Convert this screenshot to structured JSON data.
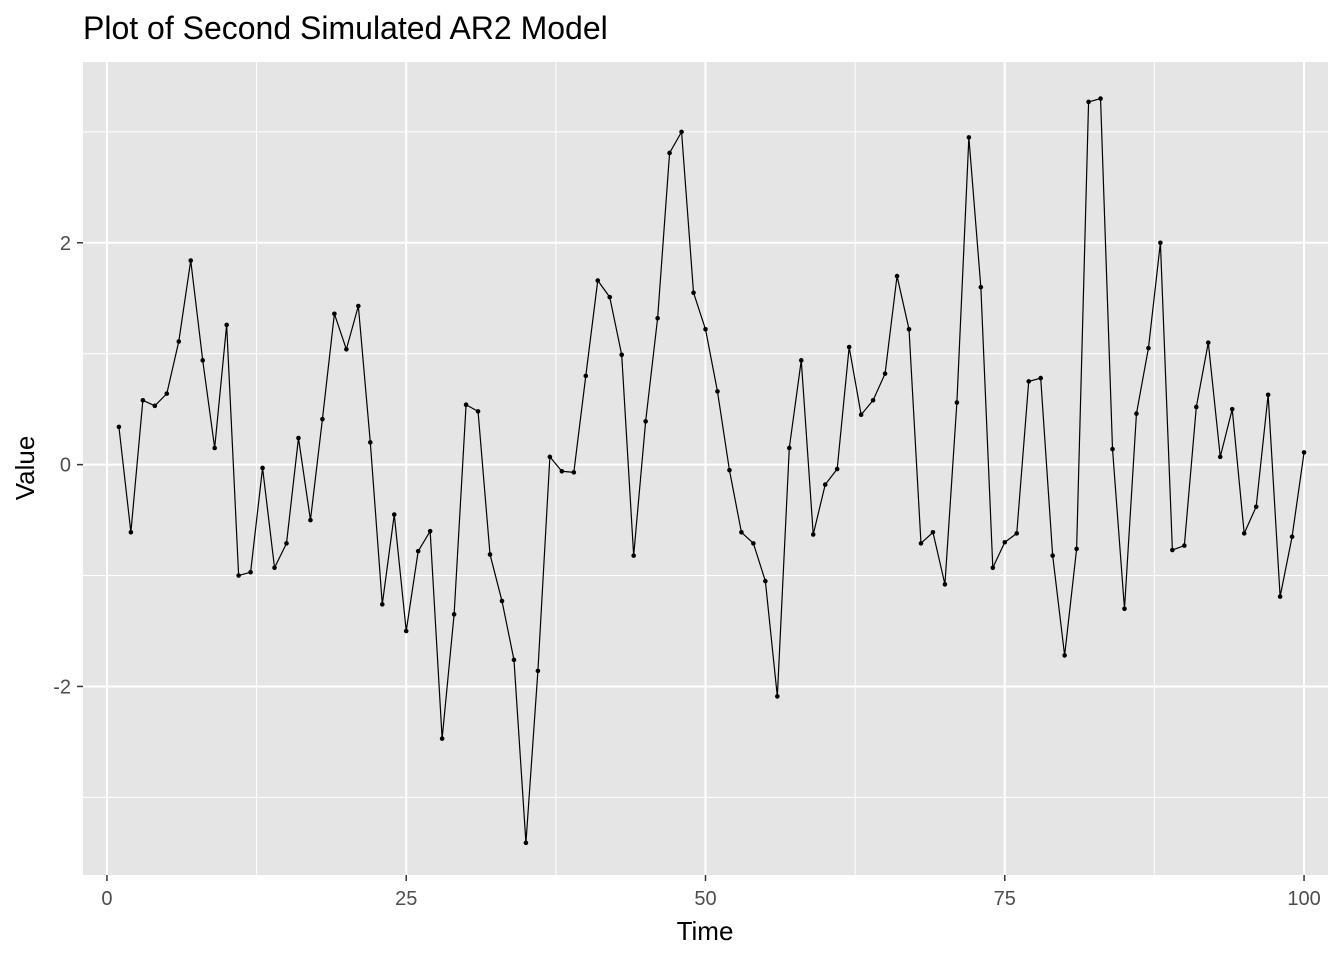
{
  "chart_data": {
    "type": "line",
    "title": "Plot of Second Simulated AR2 Model",
    "xlabel": "Time",
    "ylabel": "Value",
    "xlim": [
      -2,
      102
    ],
    "ylim": [
      -3.7,
      3.63
    ],
    "x_ticks": [
      {
        "value": 0,
        "label": "0"
      },
      {
        "value": 25,
        "label": "25"
      },
      {
        "value": 50,
        "label": "50"
      },
      {
        "value": 75,
        "label": "75"
      },
      {
        "value": 100,
        "label": "100"
      }
    ],
    "y_ticks": [
      {
        "value": -2,
        "label": "-2"
      },
      {
        "value": 0,
        "label": "0"
      },
      {
        "value": 2,
        "label": "2"
      }
    ],
    "x_minor": [
      12.5,
      37.5,
      62.5,
      87.5
    ],
    "y_minor": [
      -3,
      -1,
      1,
      3
    ],
    "grid": true,
    "point_markers": true,
    "colors": {
      "panel_background": "#e5e5e5",
      "grid": "#ffffff",
      "line": "#000000",
      "tick_label": "#4d4d4d"
    },
    "series": [
      {
        "x": [
          1,
          2,
          3,
          4,
          5,
          6,
          7,
          8,
          9,
          10,
          11,
          12,
          13,
          14,
          15,
          16,
          17,
          18,
          19,
          20,
          21,
          22,
          23,
          24,
          25,
          26,
          27,
          28,
          29,
          30,
          31,
          32,
          33,
          34,
          35,
          36,
          37,
          38,
          39,
          40,
          41,
          42,
          43,
          44,
          45,
          46,
          47,
          48,
          49,
          50,
          51,
          52,
          53,
          54,
          55,
          56,
          57,
          58,
          59,
          60,
          61,
          62,
          63,
          64,
          65,
          66,
          67,
          68,
          69,
          70,
          71,
          72,
          73,
          74,
          75,
          76,
          77,
          78,
          79,
          80,
          81,
          82,
          83,
          84,
          85,
          86,
          87,
          88,
          89,
          90,
          91,
          92,
          93,
          94,
          95,
          96,
          97,
          98,
          99,
          100
        ],
        "values": [
          0.34,
          -0.61,
          0.58,
          0.53,
          0.64,
          1.11,
          1.84,
          0.94,
          0.15,
          1.26,
          -1.0,
          -0.97,
          -0.03,
          -0.93,
          -0.71,
          0.24,
          -0.5,
          0.41,
          1.36,
          1.04,
          1.43,
          0.2,
          -1.26,
          -0.45,
          -1.5,
          -0.78,
          -0.6,
          -2.47,
          -1.35,
          0.54,
          0.48,
          -0.81,
          -1.23,
          -1.76,
          -3.41,
          -1.86,
          0.07,
          -0.06,
          -0.07,
          0.8,
          1.66,
          1.51,
          0.99,
          -0.82,
          0.39,
          1.32,
          2.81,
          3.0,
          1.55,
          1.22,
          0.66,
          -0.05,
          -0.61,
          -0.71,
          -1.05,
          -2.09,
          0.15,
          0.94,
          -0.63,
          -0.18,
          -0.04,
          1.06,
          0.45,
          0.58,
          0.82,
          1.7,
          1.22,
          -0.71,
          -0.61,
          -1.08,
          0.56,
          2.95,
          1.6,
          -0.93,
          -0.7,
          -0.62,
          0.75,
          0.78,
          -0.82,
          -1.72,
          -0.76,
          3.27,
          3.3,
          0.14,
          -1.3,
          0.46,
          1.05,
          2.0,
          -0.77,
          -0.73,
          0.52,
          1.1,
          0.07,
          0.5,
          -0.62,
          -0.38,
          0.63,
          -1.19,
          -0.65,
          0.11
        ]
      }
    ]
  }
}
